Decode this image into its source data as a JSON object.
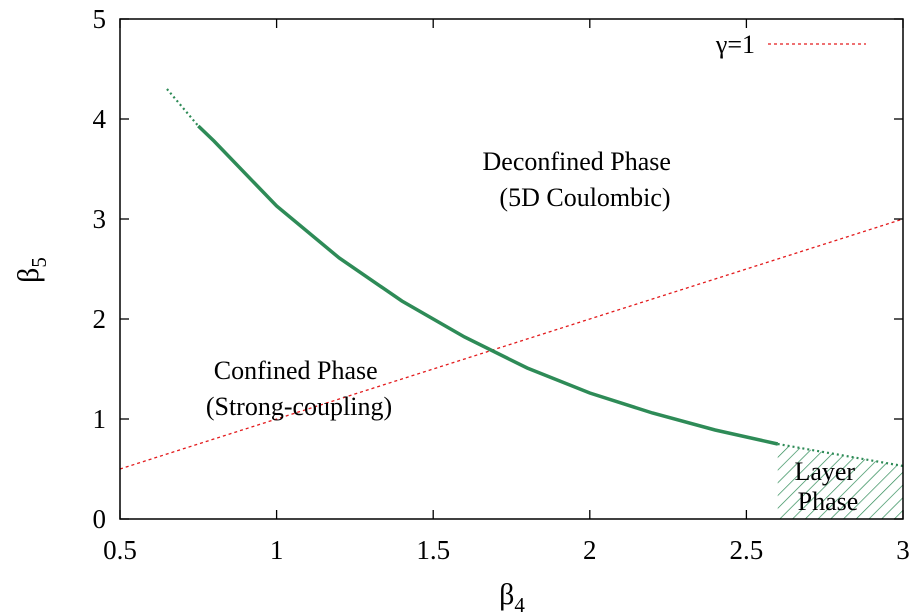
{
  "chart_data": {
    "type": "line",
    "title": "",
    "xlabel": {
      "base": "β",
      "sub": "4"
    },
    "ylabel": {
      "base": "β",
      "sub": "5"
    },
    "xlim": [
      0.5,
      3.0
    ],
    "ylim": [
      0,
      5
    ],
    "xticks": [
      0.5,
      1,
      1.5,
      2,
      2.5,
      3
    ],
    "xtick_labels": [
      "0.5",
      "1",
      "1.5",
      "2",
      "2.5",
      "3"
    ],
    "yticks": [
      0,
      1,
      2,
      3,
      4,
      5
    ],
    "ytick_labels": [
      "0",
      "1",
      "2",
      "3",
      "4",
      "5"
    ],
    "grid": false,
    "legend_position": "top-right",
    "colors": {
      "boundary": "#2e8b57",
      "gamma_line": "#e31a1c",
      "axes": "#000000"
    },
    "series": [
      {
        "name": "γ=1",
        "style": "dotted",
        "x": [
          0.5,
          3.0
        ],
        "y": [
          0.5,
          3.0
        ]
      },
      {
        "style": "solid",
        "x": [
          0.75,
          0.8,
          1.0,
          1.2,
          1.4,
          1.6,
          1.8,
          2.0,
          2.2,
          2.4,
          2.6
        ],
        "y": [
          3.93,
          3.78,
          3.13,
          2.61,
          2.18,
          1.82,
          1.51,
          1.26,
          1.06,
          0.89,
          0.75
        ]
      },
      {
        "style": "dotted",
        "x": [
          0.65,
          0.75
        ],
        "y": [
          4.3,
          3.93
        ]
      },
      {
        "style": "dotted",
        "x": [
          2.6,
          3.0
        ],
        "y": [
          0.75,
          0.53
        ]
      }
    ],
    "regions": [
      {
        "label": "Layer Phase",
        "fill": "hatched",
        "polygon_x": [
          2.6,
          3.0,
          3.0,
          2.6
        ],
        "polygon_y": [
          0.75,
          0.53,
          0.0,
          0.0
        ]
      }
    ],
    "annotations": [
      {
        "lines": [
          "Deconfined Phase",
          "(5D Coulombic)"
        ]
      },
      {
        "lines": [
          "Confined Phase",
          "(Strong-coupling)"
        ]
      },
      {
        "lines": [
          "Layer",
          "Phase"
        ]
      }
    ]
  }
}
